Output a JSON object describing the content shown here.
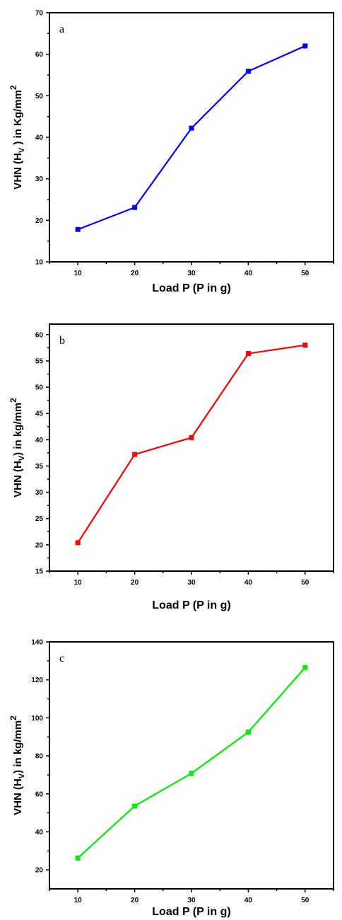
{
  "chart_data": [
    {
      "type": "line",
      "panel_label": "a",
      "x": [
        10,
        20,
        30,
        40,
        50
      ],
      "series": [
        {
          "values": [
            17.8,
            23.1,
            42.2,
            55.9,
            62.0
          ],
          "color": "#0000ff"
        }
      ],
      "xticks": [
        10,
        20,
        30,
        40,
        50
      ],
      "yticks": [
        10,
        20,
        30,
        40,
        50,
        60,
        70
      ],
      "xlim": [
        5,
        55
      ],
      "ylim": [
        10,
        70
      ],
      "xlabel": "Load P (P in g)",
      "ylabel": {
        "pre": "VHN (H",
        "sub": "V",
        "mid": " ) in Kg/mm",
        "sup": "2"
      }
    },
    {
      "type": "line",
      "panel_label": "b",
      "x": [
        10,
        20,
        30,
        40,
        50
      ],
      "series": [
        {
          "values": [
            20.4,
            37.2,
            40.4,
            56.4,
            58.0
          ],
          "color": "#ff0000"
        }
      ],
      "xticks": [
        10,
        20,
        30,
        40,
        50
      ],
      "yticks": [
        15,
        20,
        25,
        30,
        35,
        40,
        45,
        50,
        55,
        60
      ],
      "xlim": [
        5,
        55
      ],
      "ylim": [
        15,
        62
      ],
      "xlabel": "Load P (P in g)",
      "ylabel": {
        "pre": "VHN (H",
        "sub": "V",
        "mid": ") in kg/mm",
        "sup": "2"
      }
    },
    {
      "type": "line",
      "panel_label": "c",
      "x": [
        10,
        20,
        30,
        40,
        50
      ],
      "series": [
        {
          "values": [
            26.2,
            53.6,
            70.8,
            92.5,
            126.5
          ],
          "color": "#00ee00"
        }
      ],
      "xticks": [
        10,
        20,
        30,
        40,
        50
      ],
      "yticks": [
        20,
        40,
        60,
        80,
        100,
        120,
        140
      ],
      "xlim": [
        5,
        55
      ],
      "ylim": [
        10,
        140
      ],
      "xlabel": "Load P (P in g)",
      "ylabel": {
        "pre": "VHN (H",
        "sub": "V",
        "mid": ") in kg/mm",
        "sup": "2"
      }
    }
  ]
}
